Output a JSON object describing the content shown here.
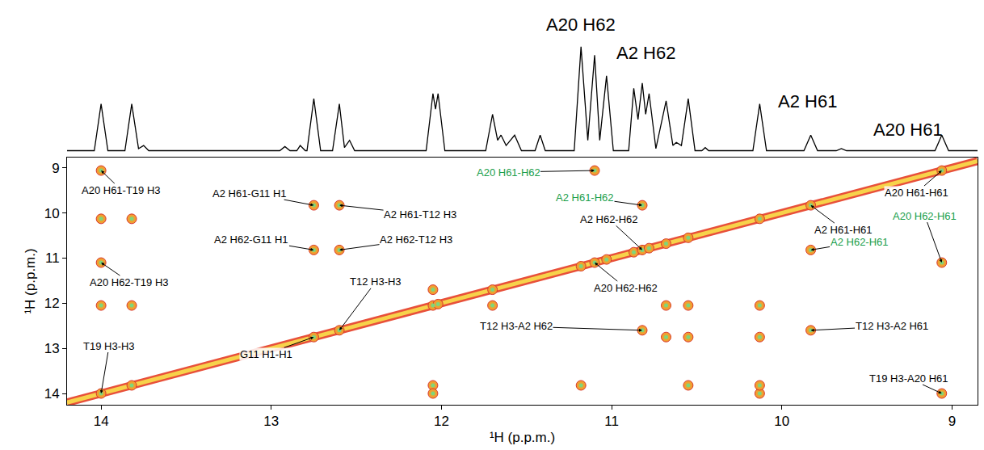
{
  "chart_data": [
    {
      "type": "line",
      "color": "#000000",
      "tick_labels": false,
      "xlim": [
        14.2,
        8.85
      ],
      "ylim": [
        -0.03,
        1.45
      ],
      "x": [
        14.2,
        14.04,
        14.0,
        13.96,
        13.86,
        13.82,
        13.78,
        13.75,
        13.72,
        12.95,
        12.92,
        12.89,
        12.85,
        12.83,
        12.8,
        12.79,
        12.75,
        12.71,
        12.64,
        12.6,
        12.57,
        12.54,
        12.51,
        12.09,
        12.05,
        12.035,
        12.02,
        11.98,
        11.74,
        11.7,
        11.67,
        11.65,
        11.62,
        11.57,
        11.53,
        11.45,
        11.42,
        11.39,
        11.22,
        11.18,
        11.14,
        11.1,
        11.07,
        11.03,
        10.99,
        10.9,
        10.87,
        10.845,
        10.82,
        10.8,
        10.78,
        10.74,
        10.68,
        10.64,
        10.62,
        10.59,
        10.55,
        10.51,
        10.47,
        10.45,
        10.43,
        10.17,
        10.13,
        10.09,
        9.87,
        9.83,
        9.79,
        9.68,
        9.65,
        9.62,
        9.1,
        9.06,
        9.02,
        8.85
      ],
      "values": [
        0,
        0,
        0.45,
        0,
        0,
        0.45,
        0.02,
        0.05,
        0,
        0,
        0.04,
        0,
        0,
        0.05,
        0,
        0,
        0.5,
        0,
        0,
        0.45,
        0.03,
        0.1,
        0,
        0,
        0.55,
        0.4,
        0.55,
        0,
        0,
        0.35,
        0.1,
        0.15,
        0.05,
        0.15,
        0,
        0,
        0.15,
        0,
        0,
        1.0,
        0.1,
        0.92,
        0.1,
        0.72,
        0,
        0,
        0.6,
        0.3,
        0.65,
        0.35,
        0.55,
        0.02,
        0.48,
        0.05,
        0.08,
        0.05,
        0.5,
        0,
        0,
        0.03,
        0,
        0,
        0.45,
        0,
        0,
        0.15,
        0,
        0,
        0.02,
        0,
        0,
        0.15,
        0,
        0
      ],
      "annotations": [
        {
          "text": "A20 H62",
          "x": 11.1
        },
        {
          "text": "A2 H62",
          "x": 10.82
        },
        {
          "text": "A2 H61",
          "x": 9.83
        },
        {
          "text": "A20 H61",
          "x": 9.06
        }
      ]
    },
    {
      "type": "scatter",
      "marker": "circle",
      "color": "#f0a030",
      "x_label": "¹H (p.p.m.)",
      "y_label": "¹H (p.p.m.)",
      "xlim": [
        14.2,
        8.85
      ],
      "ylim": [
        14.25,
        8.77
      ],
      "xticks": [
        14,
        13,
        12,
        11,
        10,
        9
      ],
      "yticks": [
        9,
        10,
        11,
        12,
        13,
        14
      ],
      "peaks": {
        "x": [
          14.0,
          12.75,
          12.6,
          12.75,
          12.6,
          14.0,
          11.1,
          10.82,
          9.06,
          9.83,
          10.82,
          9.83,
          9.06,
          14.0,
          13.82,
          12.75,
          12.6,
          12.05,
          12.02,
          11.7,
          11.18,
          11.1,
          11.03,
          10.87,
          10.82,
          10.78,
          10.68,
          10.55,
          10.13,
          9.83,
          9.06,
          14.0,
          14.0,
          13.82,
          13.82,
          12.05,
          12.05,
          10.13,
          10.13,
          10.13,
          10.13,
          11.18,
          10.55,
          10.55,
          10.55,
          11.7,
          12.05,
          10.68,
          10.68
        ],
        "y": [
          9.06,
          9.83,
          9.83,
          10.82,
          10.82,
          11.1,
          9.06,
          9.83,
          11.1,
          10.82,
          12.6,
          12.6,
          14.0,
          14.0,
          13.82,
          12.75,
          12.6,
          12.05,
          12.02,
          11.7,
          11.18,
          11.1,
          11.03,
          10.87,
          10.82,
          10.78,
          10.68,
          10.55,
          10.13,
          9.83,
          9.06,
          10.13,
          12.05,
          10.13,
          12.05,
          13.82,
          14.0,
          14.0,
          13.82,
          12.05,
          12.75,
          13.82,
          13.82,
          12.05,
          12.75,
          12.05,
          11.7,
          12.05,
          12.75
        ]
      },
      "annotations": [
        {
          "text": "A20 H61-T19 H3",
          "x": 14.0,
          "y": 9.06,
          "color": "#000000"
        },
        {
          "text": "A2 H61-G11 H1",
          "x": 12.75,
          "y": 9.83,
          "color": "#000000"
        },
        {
          "text": "A2 H61-T12 H3",
          "x": 12.6,
          "y": 9.83,
          "color": "#000000"
        },
        {
          "text": "A2 H62-G11 H1",
          "x": 12.75,
          "y": 10.82,
          "color": "#000000"
        },
        {
          "text": "A2 H62-T12 H3",
          "x": 12.6,
          "y": 10.82,
          "color": "#000000"
        },
        {
          "text": "A20 H62-T19 H3",
          "x": 14.0,
          "y": 11.1,
          "color": "#000000"
        },
        {
          "text": "A20 H61-H62",
          "x": 11.1,
          "y": 9.06,
          "color": "#1a9e4a"
        },
        {
          "text": "A2 H61-H62",
          "x": 10.82,
          "y": 9.83,
          "color": "#1a9e4a"
        },
        {
          "text": "A20 H62-H61",
          "x": 9.06,
          "y": 11.1,
          "color": "#1a9e4a"
        },
        {
          "text": "A2 H62-H61",
          "x": 9.83,
          "y": 10.82,
          "color": "#1a9e4a"
        },
        {
          "text": "A20 H61-H61",
          "x": 9.06,
          "y": 9.06,
          "color": "#000000"
        },
        {
          "text": "A2 H61-H61",
          "x": 9.83,
          "y": 9.83,
          "color": "#000000"
        },
        {
          "text": "A2 H62-H62",
          "x": 10.82,
          "y": 10.82,
          "color": "#000000"
        },
        {
          "text": "A20 H62-H62",
          "x": 11.1,
          "y": 11.1,
          "color": "#000000"
        },
        {
          "text": "T12 H3-H3",
          "x": 12.6,
          "y": 12.6,
          "color": "#000000"
        },
        {
          "text": "G11 H1-H1",
          "x": 12.75,
          "y": 12.75,
          "color": "#000000"
        },
        {
          "text": "T19 H3-H3",
          "x": 14.0,
          "y": 14.0,
          "color": "#000000"
        },
        {
          "text": "T12 H3-A2 H62",
          "x": 10.82,
          "y": 12.6,
          "color": "#000000"
        },
        {
          "text": "T12 H3-A2 H61",
          "x": 9.83,
          "y": 12.6,
          "color": "#000000"
        },
        {
          "text": "T19 H3-A20 H61",
          "x": 9.06,
          "y": 14.0,
          "color": "#000000"
        }
      ]
    }
  ]
}
